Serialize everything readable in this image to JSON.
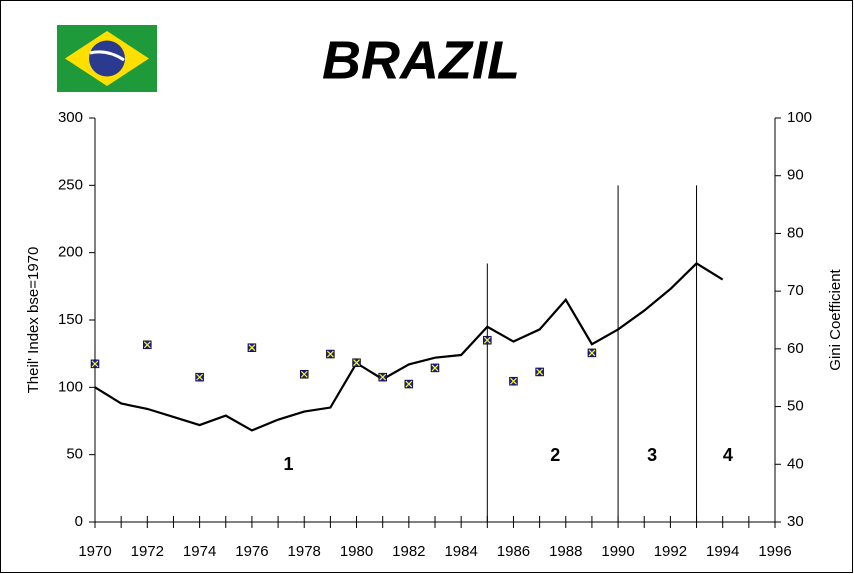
{
  "chart_data": {
    "type": "line",
    "title": "BRAZIL",
    "y_label": "Theil' Index bse=1970",
    "y2_label": "Gini Coefficient",
    "x": [
      1970,
      1971,
      1972,
      1973,
      1974,
      1975,
      1976,
      1977,
      1978,
      1979,
      1980,
      1981,
      1982,
      1983,
      1984,
      1985,
      1986,
      1987,
      1988,
      1989,
      1990,
      1991,
      1992,
      1993,
      1994
    ],
    "series": [
      {
        "type": "line",
        "color": "#000000",
        "values": [
          100,
          88,
          84,
          78,
          72,
          79,
          68,
          76,
          82,
          85,
          118,
          106,
          117,
          122,
          124,
          145,
          134,
          143,
          165,
          132,
          143,
          157,
          173,
          192,
          180
        ]
      },
      {
        "type": "scatter",
        "axis": "y2",
        "color": "#1a1aa0",
        "cross_color": "#ffff00",
        "values": [
          57.4,
          null,
          60.7,
          null,
          55.1,
          null,
          60.2,
          null,
          55.6,
          59.1,
          57.6,
          55.1,
          53.9,
          56.7,
          null,
          61.5,
          54.4,
          56.0,
          null,
          59.3,
          null,
          null,
          null,
          null,
          null
        ]
      }
    ],
    "xlim": [
      1970,
      1996
    ],
    "xticks": [
      1970,
      1972,
      1974,
      1976,
      1978,
      1980,
      1982,
      1984,
      1986,
      1988,
      1990,
      1992,
      1994,
      1996
    ],
    "ylim": [
      0,
      300
    ],
    "yticks": [
      0,
      50,
      100,
      150,
      200,
      250,
      300
    ],
    "y2lim": [
      30,
      100
    ],
    "y2ticks": [
      30,
      40,
      50,
      60,
      70,
      80,
      90,
      100
    ],
    "dividers": [
      {
        "x": 1985,
        "top": 192
      },
      {
        "x": 1990,
        "top": 250
      },
      {
        "x": 1993,
        "top": 250
      }
    ],
    "annotations": [
      {
        "text": "1",
        "x": 1977.4,
        "y": 42
      },
      {
        "text": "2",
        "x": 1987.6,
        "y": 49
      },
      {
        "text": "3",
        "x": 1991.3,
        "y": 49
      },
      {
        "text": "4",
        "x": 1994.2,
        "y": 49
      }
    ]
  }
}
